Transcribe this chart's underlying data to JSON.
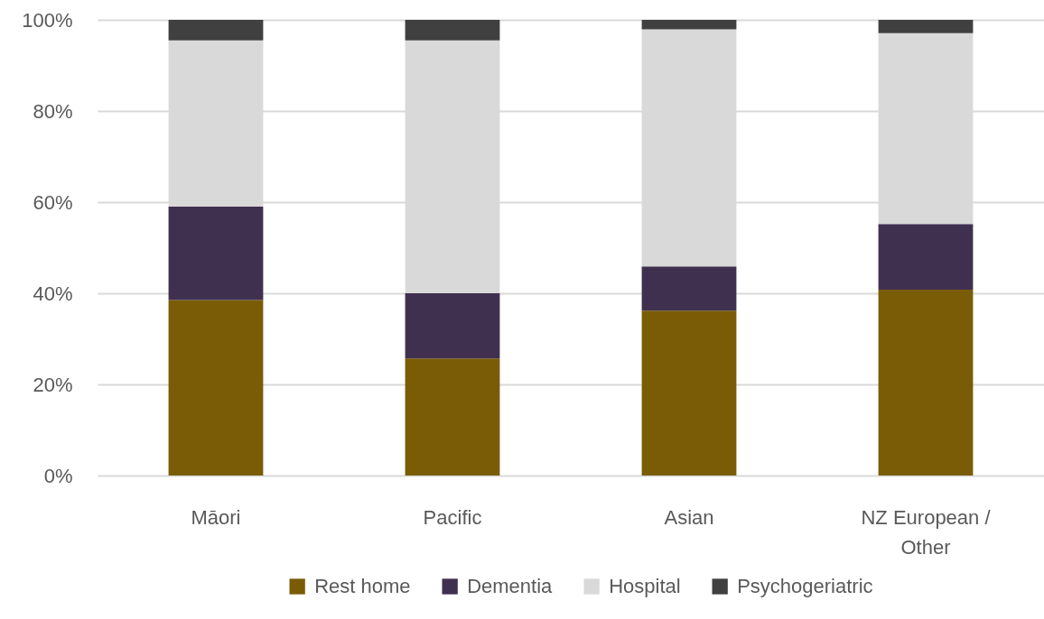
{
  "chart_data": {
    "type": "bar",
    "stacked": true,
    "categories": [
      "Māori",
      "Pacific",
      "Asian",
      "NZ European / Other"
    ],
    "series": [
      {
        "name": "Rest home",
        "color": "#7a5c06",
        "values": [
          38.5,
          25.7,
          36.2,
          40.8
        ]
      },
      {
        "name": "Dementia",
        "color": "#403050",
        "values": [
          20.5,
          14.3,
          9.7,
          14.4
        ]
      },
      {
        "name": "Hospital",
        "color": "#d9d9d9",
        "values": [
          36.5,
          55.5,
          52.0,
          41.9
        ]
      },
      {
        "name": "Psychogeriatric",
        "color": "#404040",
        "values": [
          4.5,
          4.5,
          2.1,
          2.9
        ]
      }
    ],
    "ylim": [
      0,
      100
    ],
    "yticks": [
      {
        "value": 0,
        "label": "0%"
      },
      {
        "value": 20,
        "label": "20%"
      },
      {
        "value": 40,
        "label": "40%"
      },
      {
        "value": 60,
        "label": "60%"
      },
      {
        "value": 80,
        "label": "80%"
      },
      {
        "value": 100,
        "label": "100%"
      }
    ],
    "grid": "y",
    "legend": "bottom"
  }
}
